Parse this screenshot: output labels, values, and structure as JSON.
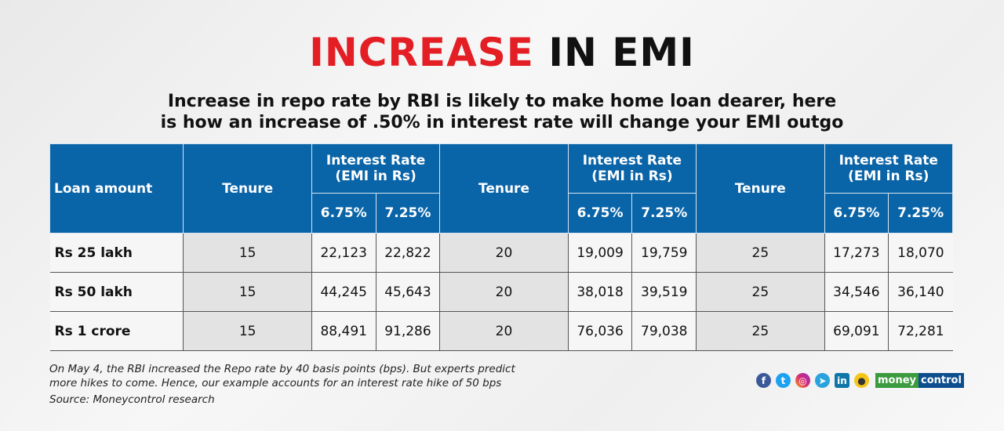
{
  "title": {
    "part1": "INCREASE",
    "part2": " IN EMI"
  },
  "subtitle": {
    "line1": "Increase in repo rate by RBI is likely to make home loan dearer, here",
    "line2": "is how an increase of .50% in interest rate will change your EMI outgo"
  },
  "colors": {
    "header": "#0a64a8",
    "accent": "#e31e24"
  },
  "table": {
    "loan_header": "Loan amount",
    "tenure_header": "Tenure",
    "rate_header_line1": "Interest Rate",
    "rate_header_line2": "(EMI in Rs)",
    "rate_low": "6.75%",
    "rate_high": "7.25%",
    "rows": [
      [
        "Rs 25 lakh",
        "15",
        "22,123",
        "22,822",
        "20",
        "19,009",
        "19,759",
        "25",
        "17,273",
        "18,070"
      ],
      [
        "Rs 50 lakh",
        "15",
        "44,245",
        "45,643",
        "20",
        "38,018",
        "39,519",
        "25",
        "34,546",
        "36,140"
      ],
      [
        "Rs 1 crore",
        "15",
        "88,491",
        "91,286",
        "20",
        "76,036",
        "79,038",
        "25",
        "69,091",
        "72,281"
      ]
    ]
  },
  "chart_data": {
    "type": "table",
    "title": "INCREASE IN EMI",
    "columns": [
      "Loan amount",
      "Tenure 15: 6.75%",
      "Tenure 15: 7.25%",
      "Tenure 20: 6.75%",
      "Tenure 20: 7.25%",
      "Tenure 25: 6.75%",
      "Tenure 25: 7.25%"
    ],
    "rows": [
      {
        "loan": "Rs 25 lakh",
        "values": [
          22123,
          22822,
          19009,
          19759,
          17273,
          18070
        ]
      },
      {
        "loan": "Rs 50 lakh",
        "values": [
          44245,
          45643,
          38018,
          39519,
          34546,
          36140
        ]
      },
      {
        "loan": "Rs 1 crore",
        "values": [
          88491,
          91286,
          76036,
          79038,
          69091,
          72281
        ]
      }
    ]
  },
  "footer": {
    "note_line1": "On May 4, the RBI increased the Repo rate by 40 basis points (bps). But experts predict",
    "note_line2": "more hikes to come. Hence, our example accounts for an interest rate hike of 50 bps",
    "source": "Source: Moneycontrol research",
    "social_icons": [
      "facebook-icon",
      "twitter-icon",
      "instagram-icon",
      "telegram-icon",
      "linkedin-icon",
      "koo-icon"
    ],
    "brand_part1": "money",
    "brand_part2": "control"
  }
}
